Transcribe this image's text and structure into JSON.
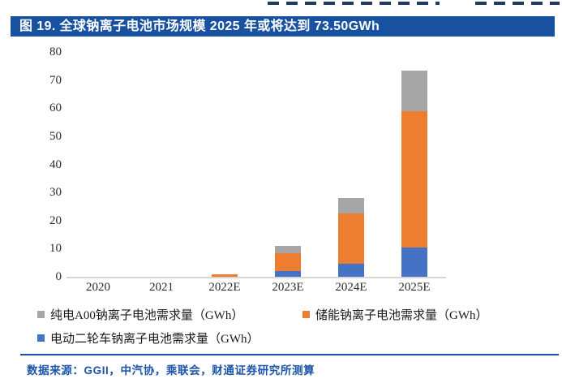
{
  "title_bar": {
    "text": "图 19. 全球钠离子电池市场规模 2025 年或将达到 73.50GWh",
    "bg_color": "#1851A0",
    "text_color": "#FFFFFF"
  },
  "chart_data": {
    "type": "bar",
    "stacked": true,
    "title": "全球钠离子电池市场规模 2025 年或将达到 73.50GWh",
    "categories": [
      "2020",
      "2021",
      "2022E",
      "2023E",
      "2024E",
      "2025E"
    ],
    "series": [
      {
        "name": "电动二轮车钠离子电池需求量（GWh）",
        "color": "#4472C4",
        "values": [
          0,
          0,
          0,
          2.0,
          4.5,
          10.4
        ]
      },
      {
        "name": "储能钠离子电池需求量（GWh）",
        "color": "#ED7D31",
        "values": [
          0,
          0,
          1.0,
          6.5,
          17.9,
          48.6
        ]
      },
      {
        "name": "纯电A00钠离子电池需求量（GWh）",
        "color": "#A6A6A6",
        "values": [
          0,
          0,
          0,
          2.5,
          5.6,
          14.5
        ]
      }
    ],
    "totals": [
      0,
      0,
      1.0,
      11.0,
      28.0,
      73.5
    ],
    "xlabel": "",
    "ylabel": "",
    "ylim": [
      0,
      80
    ],
    "yticks": [
      0,
      10,
      20,
      30,
      40,
      50,
      60,
      70,
      80
    ],
    "grid": false,
    "legend_position": "bottom"
  },
  "legend": {
    "items": [
      {
        "label": "纯电A00钠离子电池需求量（GWh）",
        "color": "#A6A6A6"
      },
      {
        "label": "储能钠离子电池需求量（GWh）",
        "color": "#ED7D31"
      },
      {
        "label": "电动二轮车钠离子电池需求量（GWh）",
        "color": "#4472C4"
      }
    ]
  },
  "footer": {
    "source": "数据来源：GGII，中汽协，乘联会，财通证券研究所测算"
  }
}
